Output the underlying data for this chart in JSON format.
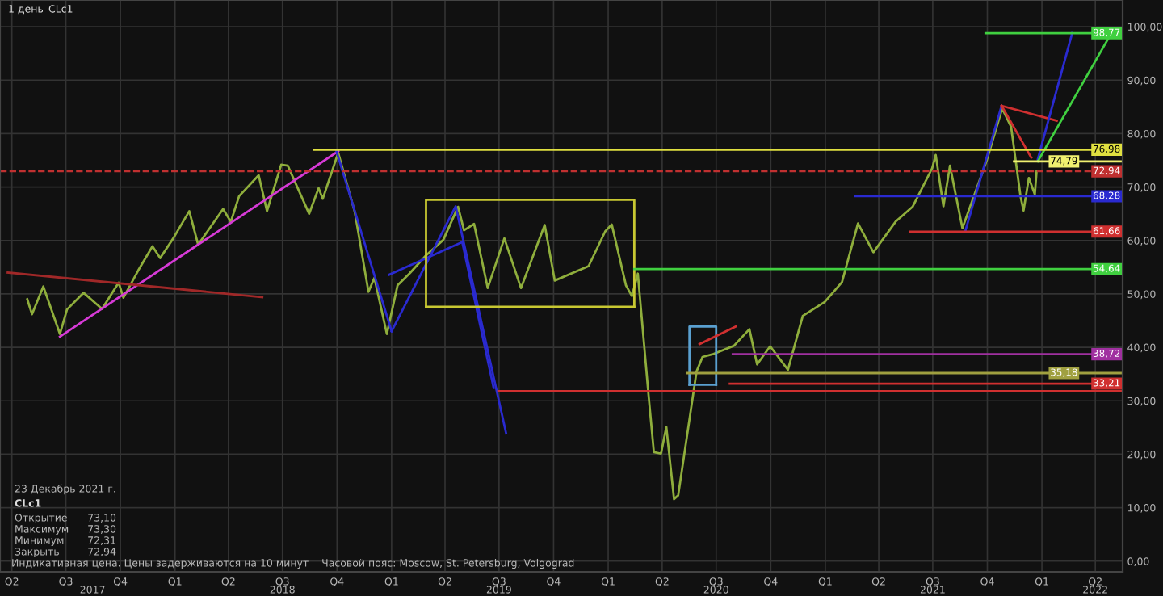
{
  "chart_data": {
    "type": "line",
    "annotations": [
      "1 день",
      "CLc1",
      "23 Декабрь 2021 г.",
      "CLc1",
      "Открытие",
      "73,10",
      "Максимум",
      "73,30",
      "Минимум",
      "72,31",
      "Закрыть",
      "72,94",
      "Индикативная цена. Цены задерживаются на 10 минут    Часовой пояс: Moscow, St. Petersburg, Volgograd"
    ],
    "series": [
      {
        "color": "#8fae3c",
        "x": [
          "2017-04-27",
          "2017-05-05",
          "2017-05-24",
          "2017-06-21",
          "2017-07-03",
          "2017-07-31",
          "2017-08-31",
          "2017-09-28",
          "2017-10-06",
          "2017-10-31",
          "2017-11-24",
          "2017-12-07",
          "2017-12-29",
          "2018-01-25",
          "2018-02-09",
          "2018-03-23",
          "2018-04-05",
          "2018-04-19",
          "2018-05-22",
          "2018-06-05",
          "2018-06-29",
          "2018-07-10",
          "2018-08-15",
          "2018-08-31",
          "2018-09-07",
          "2018-10-03",
          "2018-10-31",
          "2018-11-23",
          "2018-12-03",
          "2018-12-24",
          "2019-01-11",
          "2019-01-31",
          "2019-02-28",
          "2019-03-29",
          "2019-04-23",
          "2019-05-03",
          "2019-05-20",
          "2019-06-12",
          "2019-07-10",
          "2019-08-07",
          "2019-09-16",
          "2019-10-03",
          "2019-11-29",
          "2019-12-27",
          "2020-01-07",
          "2020-01-31",
          "2020-02-10",
          "2020-02-20",
          "2020-03-09",
          "2020-03-18",
          "2020-03-30",
          "2020-04-08",
          "2020-04-21",
          "2020-04-28",
          "2020-05-29",
          "2020-06-08",
          "2020-06-25",
          "2020-07-31",
          "2020-08-26",
          "2020-09-08",
          "2020-09-30",
          "2020-10-30",
          "2020-11-24",
          "2020-12-31",
          "2021-01-29",
          "2021-02-25",
          "2021-03-23",
          "2021-04-30",
          "2021-05-28",
          "2021-06-30",
          "2021-07-06",
          "2021-07-19",
          "2021-07-30",
          "2021-08-20",
          "2021-09-30",
          "2021-10-26",
          "2021-11-10",
          "2021-11-26",
          "2021-12-01",
          "2021-12-10",
          "2021-12-20",
          "2021-12-23"
        ],
        "values": [
          49.0,
          46.2,
          51.4,
          42.5,
          47.1,
          50.2,
          47.2,
          52.1,
          49.3,
          54.4,
          58.9,
          56.7,
          60.4,
          65.5,
          59.2,
          65.9,
          63.5,
          68.3,
          72.2,
          65.5,
          74.2,
          74.0,
          65.0,
          69.8,
          67.8,
          76.4,
          65.3,
          50.4,
          53.0,
          42.5,
          51.6,
          53.8,
          57.2,
          60.1,
          66.3,
          61.9,
          63.1,
          51.1,
          60.4,
          51.1,
          62.9,
          52.5,
          55.2,
          61.7,
          63.0,
          51.6,
          49.6,
          53.8,
          31.1,
          20.4,
          20.1,
          25.1,
          11.6,
          12.3,
          35.5,
          38.2,
          38.7,
          40.3,
          43.4,
          36.8,
          40.2,
          35.8,
          45.9,
          48.5,
          52.2,
          63.2,
          57.8,
          63.6,
          66.3,
          73.5,
          76.0,
          66.4,
          74.0,
          62.3,
          75.0,
          84.7,
          81.3,
          68.2,
          65.6,
          71.7,
          68.6,
          72.94
        ]
      },
      {
        "color": "#d63ad6",
        "x": [
          "2017-06-21",
          "2018-10-03"
        ],
        "values": [
          42.0,
          76.7
        ]
      },
      {
        "color": "#a02828",
        "x": [
          "2017-03-25",
          "2018-05-28"
        ],
        "values": [
          54.0,
          49.4
        ]
      },
      {
        "color": "#2a2ad0",
        "x": [
          "2018-09-30",
          "2019-01-01"
        ],
        "values": [
          76.7,
          43.0
        ]
      },
      {
        "color": "#2a2ad0",
        "x": [
          "2019-01-01",
          "2019-04-19",
          "2019-07-13"
        ],
        "values": [
          43.0,
          66.4,
          23.9
        ]
      },
      {
        "color": "#2a2ad0",
        "x": [
          "2018-12-28",
          "2019-04-30",
          "2019-06-22"
        ],
        "values": [
          53.6,
          59.7,
          32.4
        ]
      },
      {
        "color": "#c8c832",
        "x": [
          "2019-02-28",
          "2019-02-28",
          "2020-02-14",
          "2020-02-14"
        ],
        "values": [
          47.6,
          67.6,
          67.6,
          47.6
        ]
      },
      {
        "color": "#c8c832",
        "x": [
          "2019-02-28",
          "2020-02-14"
        ],
        "values": [
          47.6,
          47.6
        ]
      },
      {
        "color": "#5aa0d0",
        "x": [
          "2020-05-17",
          "2020-05-17",
          "2020-07-01",
          "2020-07-01"
        ],
        "values": [
          33.0,
          43.9,
          43.9,
          33.0
        ]
      },
      {
        "color": "#5aa0d0",
        "x": [
          "2020-05-17",
          "2020-07-01"
        ],
        "values": [
          33.0,
          33.0
        ]
      },
      {
        "color": "#d03030",
        "x": [
          "2020-06-03",
          "2020-08-03"
        ],
        "values": [
          40.6,
          43.9
        ]
      },
      {
        "color": "#2a2ad0",
        "x": [
          "2021-08-25",
          "2021-10-25"
        ],
        "values": [
          61.8,
          85.2
        ]
      },
      {
        "color": "#d03030",
        "x": [
          "2021-10-25",
          "2022-01-26"
        ],
        "values": [
          85.2,
          82.4
        ]
      },
      {
        "color": "#d03030",
        "x": [
          "2021-10-25",
          "2021-12-14"
        ],
        "values": [
          85.2,
          75.5
        ]
      },
      {
        "color": "#2a2ad0",
        "x": [
          "2021-12-25",
          "2022-02-21"
        ],
        "values": [
          75.2,
          98.8
        ]
      },
      {
        "color": "#40d040",
        "x": [
          "2021-12-25",
          "2022-04-28"
        ],
        "values": [
          74.8,
          98.8
        ]
      },
      {
        "name": "98,77",
        "color": "#40d040",
        "x": [
          "2021-09-28",
          "2022-05-17"
        ],
        "values": [
          98.77,
          98.77
        ]
      },
      {
        "name": "76,98",
        "color": "#e0e040",
        "x": [
          "2018-08-24",
          "2022-05-17"
        ],
        "values": [
          76.98,
          76.98
        ]
      },
      {
        "name": "74,79",
        "color": "#f0f070",
        "x": [
          "2021-11-15",
          "2022-05-17"
        ],
        "values": [
          74.79,
          74.79
        ]
      },
      {
        "name": "68,28",
        "color": "#2a2ad0",
        "x": [
          "2021-02-20",
          "2022-05-17"
        ],
        "values": [
          68.28,
          68.28
        ]
      },
      {
        "name": "61,66",
        "color": "#d03030",
        "x": [
          "2021-05-24",
          "2022-05-17"
        ],
        "values": [
          61.66,
          61.66
        ]
      },
      {
        "name": "54,64",
        "color": "#40d040",
        "x": [
          "2020-02-14",
          "2022-05-17"
        ],
        "values": [
          54.64,
          54.64
        ]
      },
      {
        "name": "38,72",
        "color": "#a030a0",
        "x": [
          "2020-07-29",
          "2022-05-17"
        ],
        "values": [
          38.72,
          38.72
        ]
      },
      {
        "name": "35,18",
        "color": "#a0a040",
        "x": [
          "2020-05-13",
          "2022-05-17"
        ],
        "values": [
          35.18,
          35.18
        ]
      },
      {
        "name": "33,21",
        "color": "#d03030",
        "x": [
          "2020-07-24",
          "2022-05-17"
        ],
        "values": [
          33.21,
          33.21
        ]
      },
      {
        "color": "#d03030",
        "x": [
          "2019-06-30",
          "2022-05-17"
        ],
        "values": [
          31.8,
          31.8
        ]
      }
    ],
    "ref_lines": [
      {
        "axis": "y",
        "value": 72.94,
        "label": "72,94",
        "color": "#c03030",
        "line_style": "dashed"
      }
    ],
    "xlim": [
      "2017-03-12",
      "2022-05-17"
    ],
    "xticks": [
      {
        "value": "2017-04-01",
        "label": "Q2"
      },
      {
        "value": "2017-07-01",
        "label": "Q3"
      },
      {
        "value": "2017-10-01",
        "label": "Q4"
      },
      {
        "value": "2018-01-01",
        "label": "Q1"
      },
      {
        "value": "2018-04-01",
        "label": "Q2"
      },
      {
        "value": "2018-07-01",
        "label": "Q3"
      },
      {
        "value": "2018-10-01",
        "label": "Q4"
      },
      {
        "value": "2019-01-01",
        "label": "Q1"
      },
      {
        "value": "2019-04-01",
        "label": "Q2"
      },
      {
        "value": "2019-07-01",
        "label": "Q3"
      },
      {
        "value": "2019-10-01",
        "label": "Q4"
      },
      {
        "value": "2020-01-01",
        "label": "Q1"
      },
      {
        "value": "2020-04-01",
        "label": "Q2"
      },
      {
        "value": "2020-07-01",
        "label": "Q3"
      },
      {
        "value": "2020-10-01",
        "label": "Q4"
      },
      {
        "value": "2021-01-01",
        "label": "Q1"
      },
      {
        "value": "2021-04-01",
        "label": "Q2"
      },
      {
        "value": "2021-07-01",
        "label": "Q3"
      },
      {
        "value": "2021-10-01",
        "label": "Q4"
      },
      {
        "value": "2022-01-01",
        "label": "Q1"
      },
      {
        "value": "2022-04-01",
        "label": "Q2"
      }
    ],
    "x2lim": [
      "2017-03-12",
      "2022-05-17"
    ],
    "x2ticks": [
      {
        "value": "2017-08-15",
        "label": "2017"
      },
      {
        "value": "2018-07-01",
        "label": "2018"
      },
      {
        "value": "2019-07-01",
        "label": "2019"
      },
      {
        "value": "2020-07-01",
        "label": "2020"
      },
      {
        "value": "2021-07-01",
        "label": "2021"
      },
      {
        "value": "2022-04-01",
        "label": "2022"
      }
    ],
    "ylim": [
      -2,
      105
    ],
    "yticks": [
      {
        "value": 0,
        "label": "0,00"
      },
      {
        "value": 10,
        "label": "10,00"
      },
      {
        "value": 20,
        "label": "20,00"
      },
      {
        "value": 30,
        "label": "30,00"
      },
      {
        "value": 40,
        "label": "40,00"
      },
      {
        "value": 50,
        "label": "50,00"
      },
      {
        "value": 60,
        "label": "60,00"
      },
      {
        "value": 70,
        "label": "70,00"
      },
      {
        "value": 80,
        "label": "80,00"
      },
      {
        "value": 90,
        "label": "90,00"
      },
      {
        "value": 100,
        "label": "100,00"
      }
    ],
    "grid": true,
    "legend": "right",
    "marker": "none",
    "line_style": "solid"
  }
}
